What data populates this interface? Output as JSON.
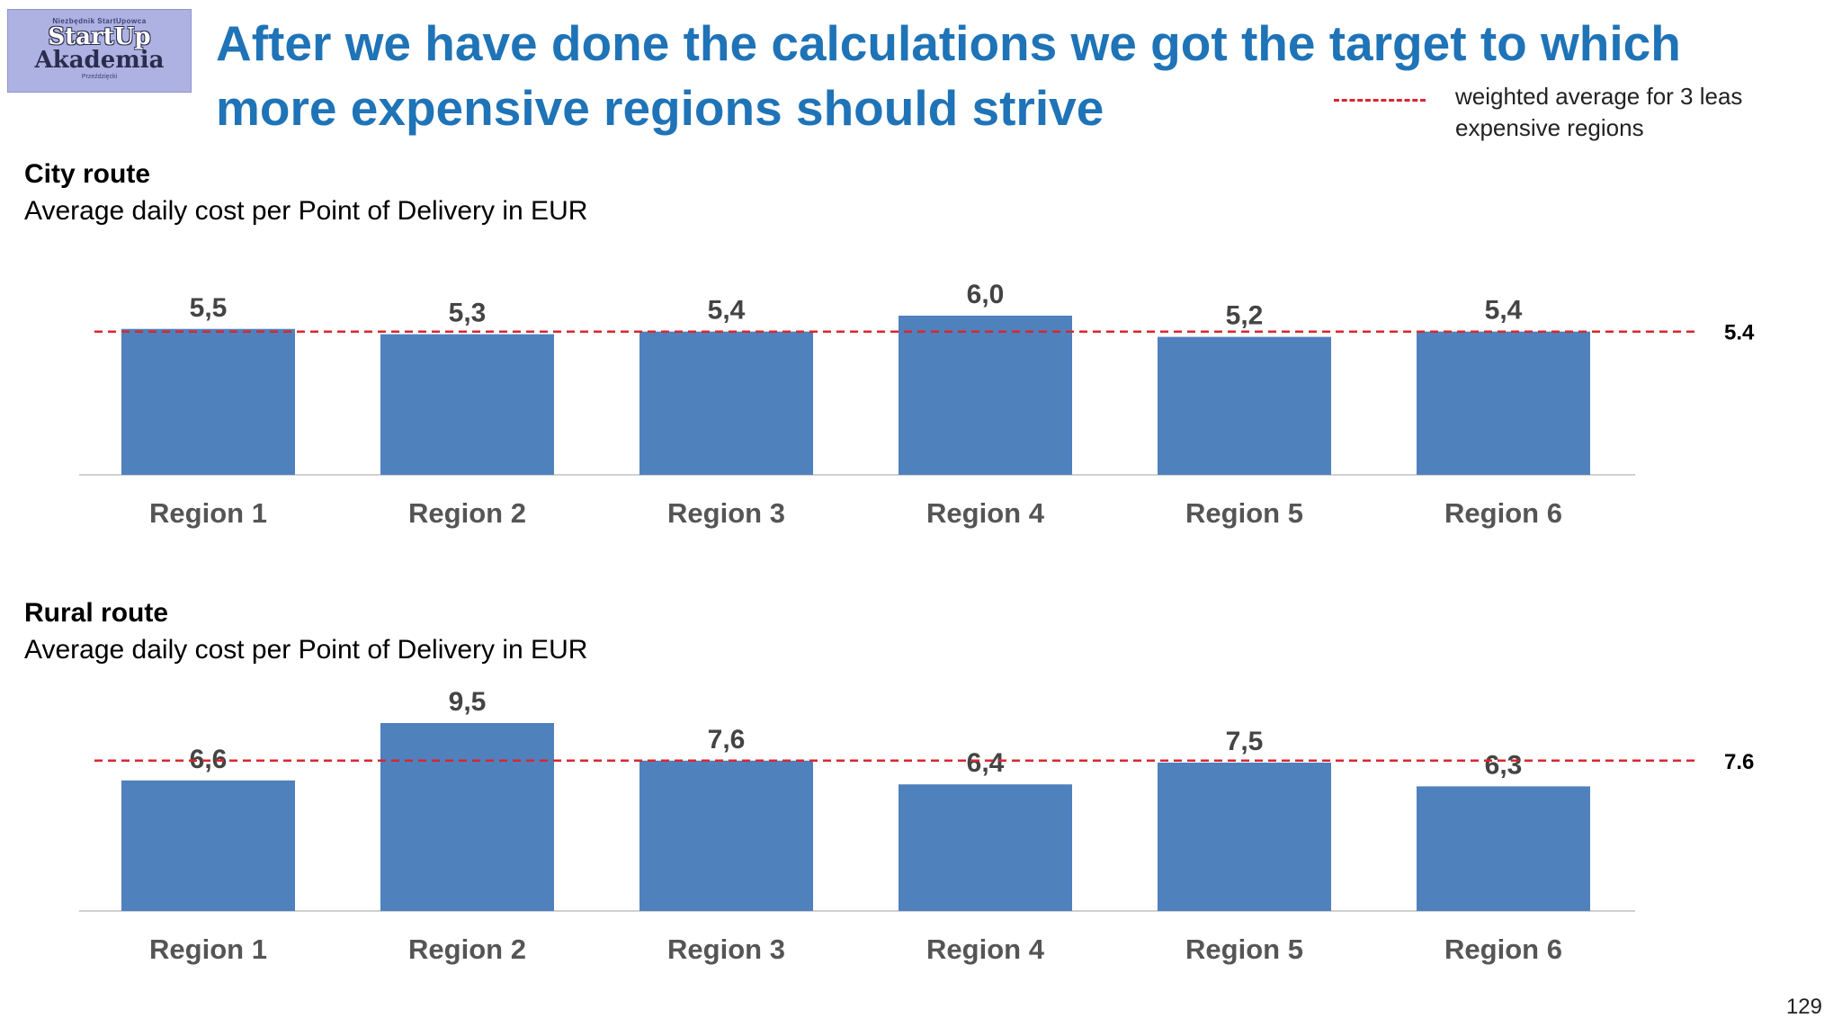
{
  "logo": {
    "top_line": "Niezbędnik StartUpowca",
    "line1": "StartUp",
    "line2": "Akademia",
    "bottom_line": "Przeździęcki"
  },
  "title": "After we have done the calculations we got the target to which more expensive regions should strive",
  "legend": {
    "label": "weighted  average for 3 leas expensive regions"
  },
  "colors": {
    "bar": "#4f81bd",
    "target_line": "#d9262e",
    "title": "#1f73b7"
  },
  "page_number": "129",
  "chart_data": [
    {
      "type": "bar",
      "title": "City route",
      "subtitle": "Average daily cost per Point of Delivery in EUR",
      "categories": [
        "Region 1",
        "Region 2",
        "Region 3",
        "Region 4",
        "Region 5",
        "Region 6"
      ],
      "values": [
        5.5,
        5.3,
        5.4,
        6.0,
        5.2,
        5.4
      ],
      "value_labels": [
        "5,5",
        "5,3",
        "5,4",
        "6,0",
        "5,2",
        "5,4"
      ],
      "target": 5.4,
      "target_label": "5.4"
    },
    {
      "type": "bar",
      "title": "Rural route",
      "subtitle": "Average daily cost per Point of Delivery in EUR",
      "categories": [
        "Region 1",
        "Region 2",
        "Region 3",
        "Region 4",
        "Region 5",
        "Region 6"
      ],
      "values": [
        6.6,
        9.5,
        7.6,
        6.4,
        7.5,
        6.3
      ],
      "value_labels": [
        "6,6",
        "9,5",
        "7,6",
        "6,4",
        "7,5",
        "6,3"
      ],
      "target": 7.6,
      "target_label": "7.6"
    }
  ]
}
